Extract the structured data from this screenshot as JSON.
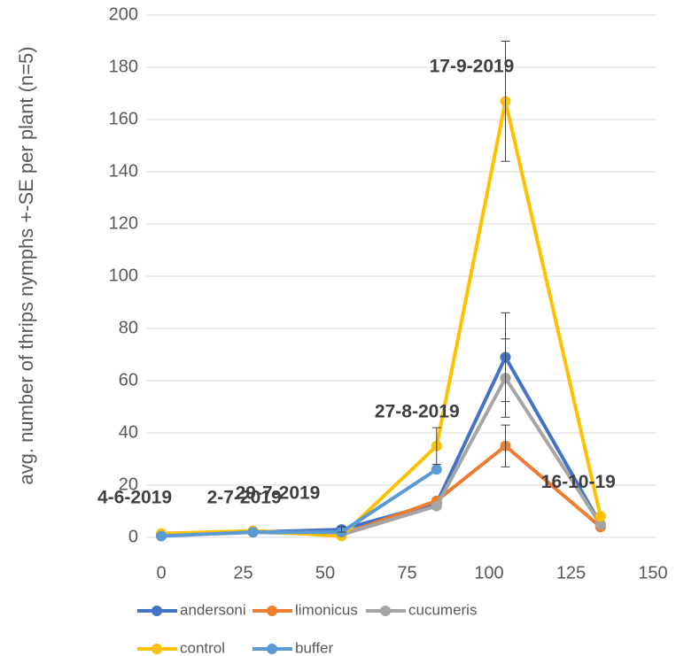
{
  "chart_data": {
    "type": "line",
    "ylabel": "avg. number of thrips nymphs +-SE  per plant  (n=5)",
    "x": [
      0,
      28,
      55,
      84,
      105,
      134
    ],
    "xlim": [
      0,
      150
    ],
    "xticks": [
      0,
      25,
      50,
      75,
      100,
      125,
      150
    ],
    "ylim": [
      0,
      200
    ],
    "yticks": [
      0,
      20,
      40,
      60,
      80,
      100,
      120,
      140,
      160,
      180,
      200
    ],
    "grid": true,
    "legend": "bottom",
    "annotations": [
      "4-6-2019",
      "2-7-2019",
      "29-7-2019",
      "27-8-2019",
      "17-9-2019",
      "16-10-19"
    ],
    "series": [
      {
        "name": "andersoni",
        "color": "#4472c4",
        "values": [
          1,
          2,
          3,
          13,
          69,
          5
        ],
        "errors": [
          null,
          null,
          1,
          null,
          17,
          null
        ]
      },
      {
        "name": "limonicus",
        "color": "#ed7d31",
        "values": [
          1,
          2.5,
          1,
          14,
          35,
          4
        ],
        "errors": [
          null,
          null,
          null,
          null,
          8,
          null
        ]
      },
      {
        "name": "cucumeris",
        "color": "#a5a5a5",
        "values": [
          1,
          2,
          1,
          12,
          61,
          5
        ],
        "errors": [
          null,
          null,
          null,
          null,
          15,
          null
        ]
      },
      {
        "name": "control",
        "color": "#ffc000",
        "values": [
          1.5,
          2.5,
          0.5,
          35,
          167,
          8
        ],
        "errors": [
          null,
          null,
          null,
          7,
          23,
          null
        ]
      },
      {
        "name": "buffer",
        "color": "#5b9bd5",
        "values": [
          0.5,
          2,
          2,
          26,
          null,
          null
        ],
        "errors": [
          null,
          null,
          null,
          null,
          null,
          null
        ]
      }
    ]
  }
}
